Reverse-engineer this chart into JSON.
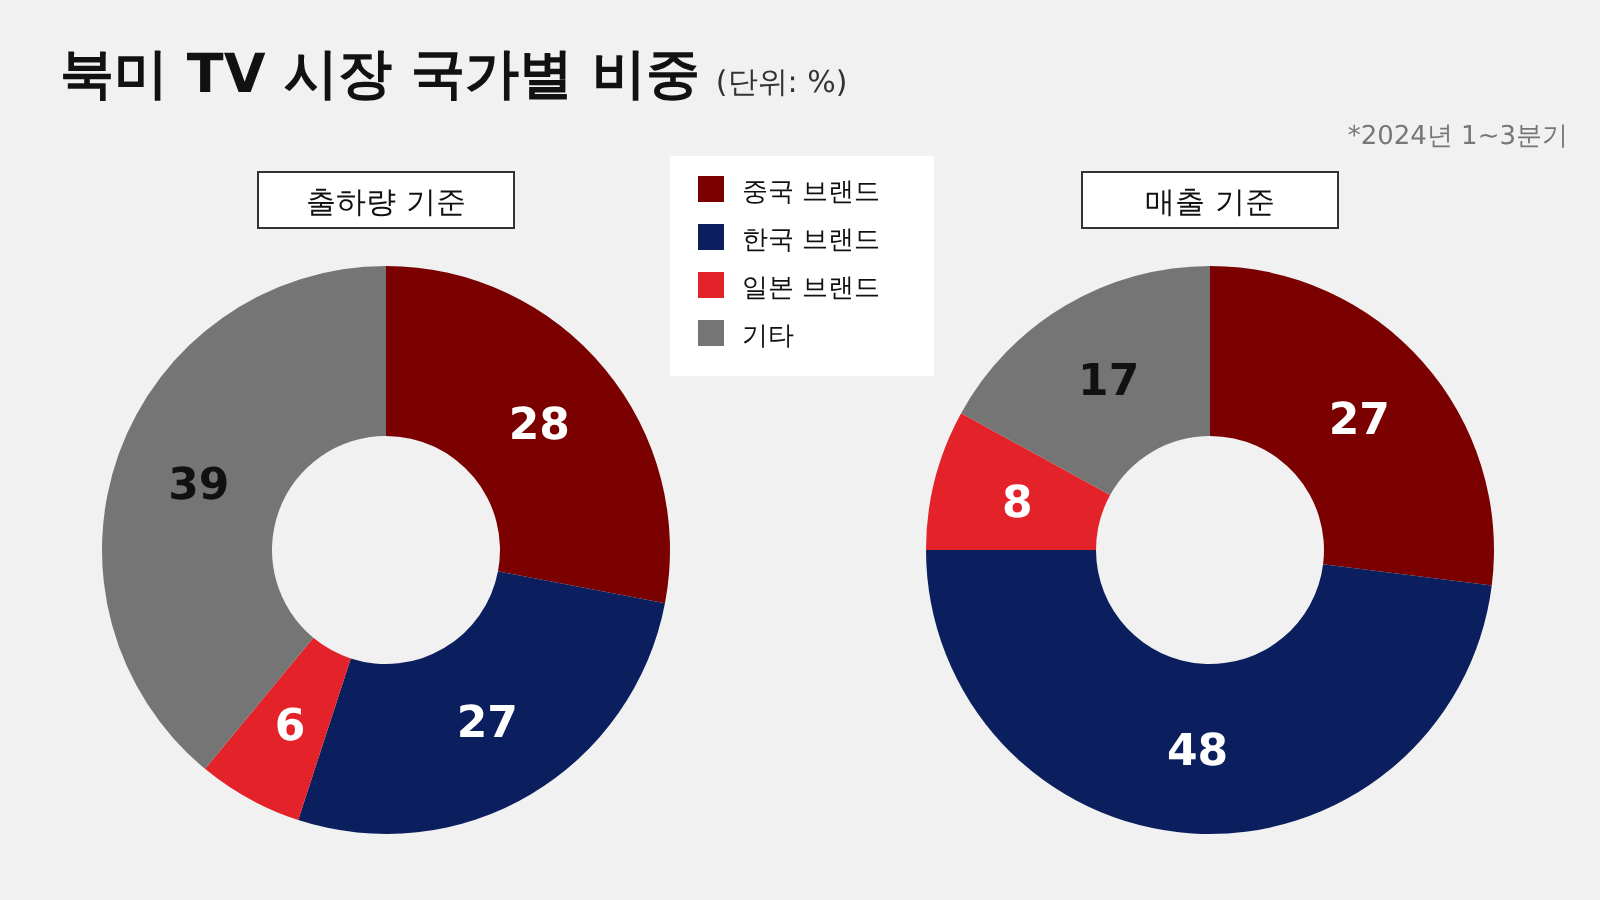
{
  "chart_data": [
    {
      "type": "donut",
      "title": "북미 TV 시장 국가별 비중",
      "subtitle": "출하량 기준",
      "categories": [
        "중국 브랜드",
        "한국 브랜드",
        "일본 브랜드",
        "기타"
      ],
      "values": [
        28,
        27,
        6,
        39
      ],
      "colors": [
        "#7b0000",
        "#0b1f5e",
        "#e4222a",
        "#757575"
      ],
      "data_labels": true,
      "legend": "right",
      "annotations": [
        "(단위: %)",
        "*2024년 1~3분기"
      ]
    },
    {
      "type": "donut",
      "title": "매출 기준",
      "categories": [
        null,
        null,
        null,
        null
      ],
      "values": [
        27,
        48,
        8,
        17
      ],
      "colors": [
        "#7b0000",
        "#0b1f5e",
        "#e4222a",
        "#757575"
      ],
      "data_labels": true
    }
  ]
}
